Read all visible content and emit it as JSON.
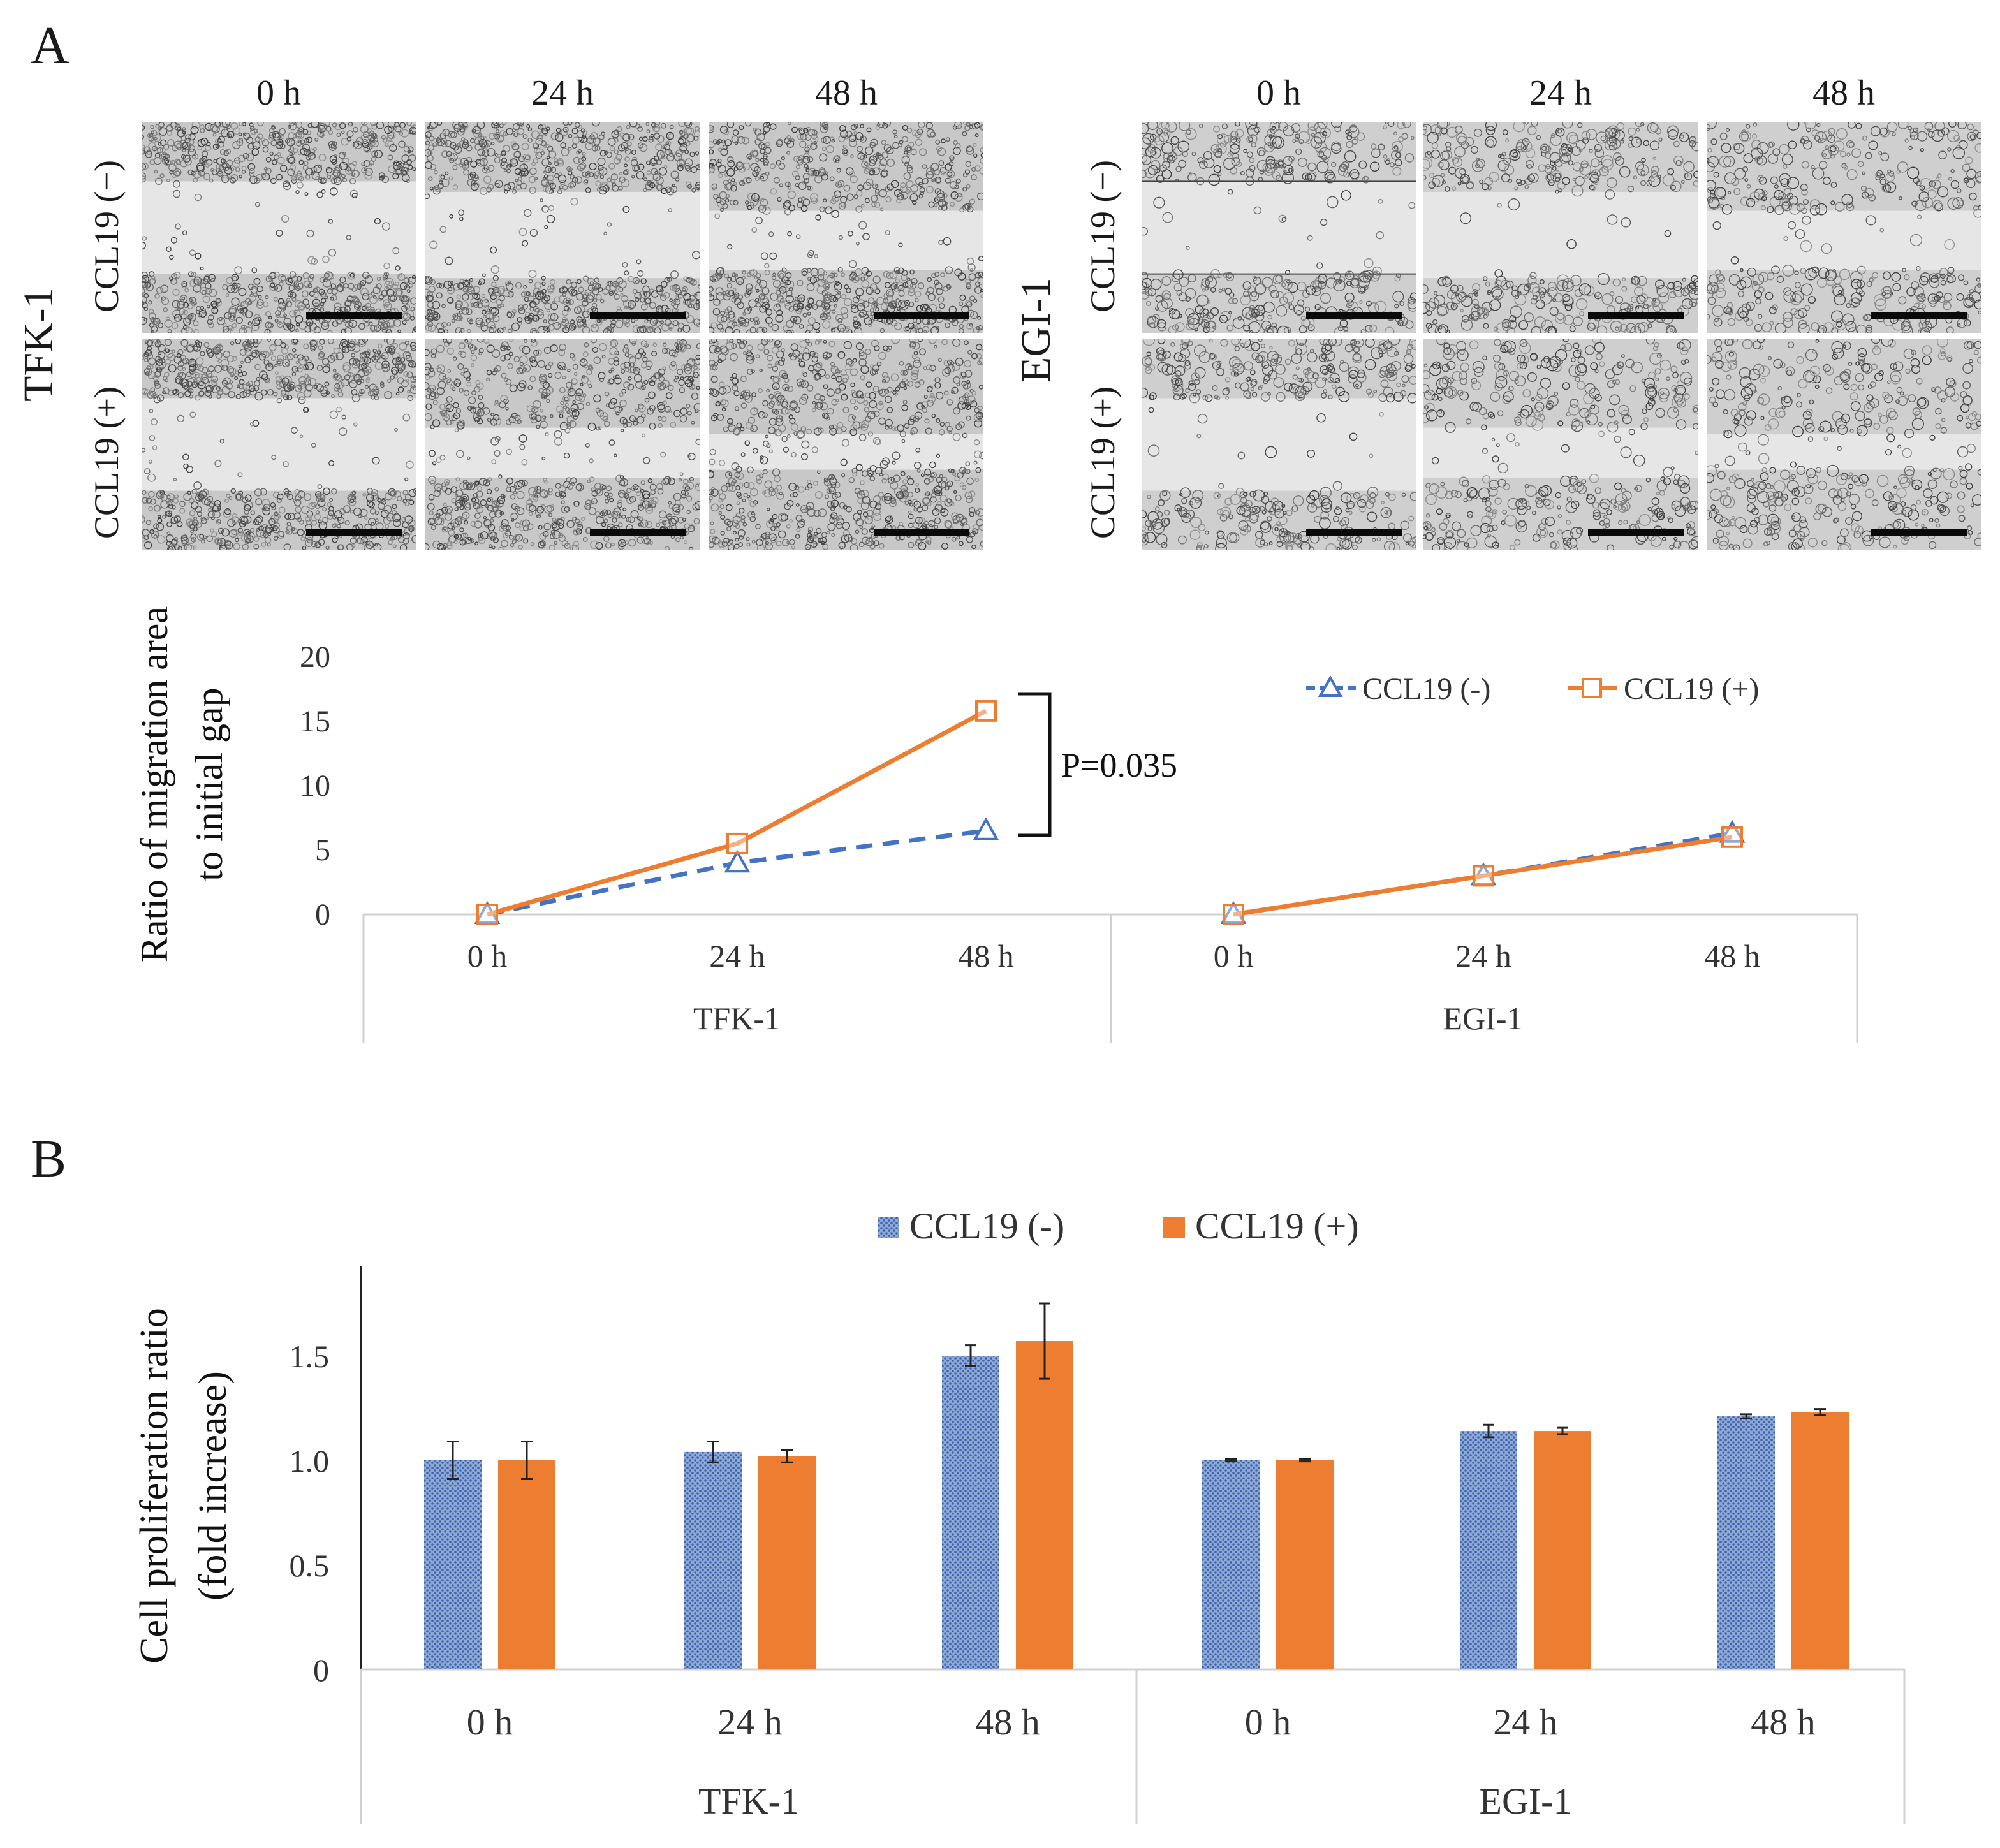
{
  "panel_a_label": "A",
  "panel_b_label": "B",
  "micrographs": {
    "time_headers": [
      "0 h",
      "24 h",
      "48 h"
    ],
    "cell_lines": [
      "TFK-1",
      "EGI-1"
    ],
    "conditions": [
      "CCL19 (−)",
      "CCL19 (+)"
    ]
  },
  "chart_data": [
    {
      "type": "line",
      "ylabel": "Ratio of migration area to initial gap",
      "ylabel_lines": [
        "Ratio of migration area",
        "to initial gap"
      ],
      "yticks": [
        0,
        5,
        10,
        15,
        20
      ],
      "ylim": [
        0,
        20
      ],
      "groups": [
        {
          "name": "TFK-1",
          "categories": [
            "0 h",
            "24 h",
            "48 h"
          ]
        },
        {
          "name": "EGI-1",
          "categories": [
            "0 h",
            "24 h",
            "48 h"
          ]
        }
      ],
      "series": [
        {
          "name": "CCL19 (-)",
          "color": "#4472c4",
          "marker": "triangle",
          "dash": true,
          "values": [
            [
              0,
              4,
              6.5
            ],
            [
              0,
              3,
              6.3
            ]
          ]
        },
        {
          "name": "CCL19 (+)",
          "color": "#ed7d31",
          "marker": "square",
          "dash": false,
          "values": [
            [
              0,
              5.5,
              15.8
            ],
            [
              0,
              3,
              6
            ]
          ]
        }
      ],
      "annotation": "P=0.035",
      "legend_position": "top-right"
    },
    {
      "type": "bar",
      "ylabel": "Cell proliferation ratio (fold increase)",
      "ylabel_lines": [
        "Cell proliferation ratio",
        "(fold increase)"
      ],
      "yticks": [
        0,
        0.5,
        1.0,
        1.5
      ],
      "ytick_labels": [
        "0",
        "0.5",
        "1.0",
        "1.5"
      ],
      "ylim": [
        0,
        1.9
      ],
      "groups": [
        {
          "name": "TFK-1",
          "categories": [
            "0 h",
            "24 h",
            "48 h"
          ]
        },
        {
          "name": "EGI-1",
          "categories": [
            "0 h",
            "24 h",
            "48 h"
          ]
        }
      ],
      "series": [
        {
          "name": "CCL19 (-)",
          "color": "#4472c4",
          "pattern": "dotted",
          "values": [
            [
              1.0,
              1.04,
              1.5
            ],
            [
              1.0,
              1.14,
              1.21
            ]
          ],
          "errors": [
            [
              0.09,
              0.05,
              0.05
            ],
            [
              0.005,
              0.03,
              0.01
            ]
          ]
        },
        {
          "name": "CCL19 (+)",
          "color": "#ed7d31",
          "pattern": "solid",
          "values": [
            [
              1.0,
              1.02,
              1.57
            ],
            [
              1.0,
              1.14,
              1.23
            ]
          ],
          "errors": [
            [
              0.09,
              0.03,
              0.18
            ],
            [
              0.005,
              0.015,
              0.015
            ]
          ]
        }
      ],
      "legend_position": "top-center"
    }
  ]
}
